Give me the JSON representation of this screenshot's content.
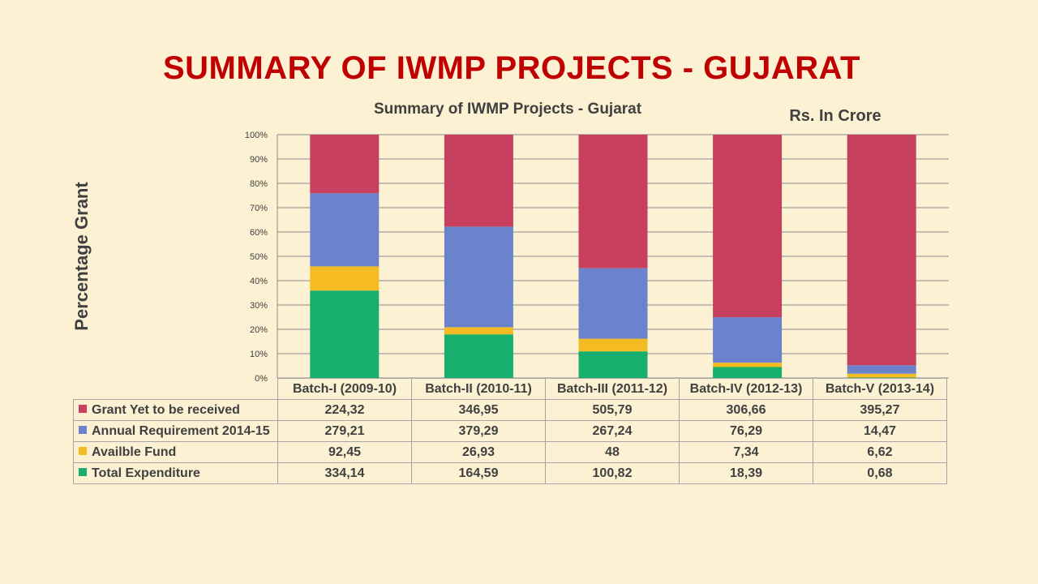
{
  "slide_title": "SUMMARY OF IWMP PROJECTS - GUJARAT",
  "unit_label": "Rs. In Crore",
  "chart_data": {
    "type": "bar",
    "stacked": "percent",
    "title": "Summary of IWMP Projects - Gujarat",
    "ylabel": "Percentage Grant",
    "xlabel": "",
    "ylim": [
      0,
      100
    ],
    "y_ticks": [
      "0%",
      "10%",
      "20%",
      "30%",
      "40%",
      "50%",
      "60%",
      "70%",
      "80%",
      "90%",
      "100%"
    ],
    "grid": true,
    "legend": "data-table",
    "categories": [
      "Batch-I (2009-10)",
      "Batch-II (2010-11)",
      "Batch-III (2011-12)",
      "Batch-IV (2012-13)",
      "Batch-V (2013-14)"
    ],
    "series": [
      {
        "name": "Grant Yet to be received",
        "color": "#c8405f",
        "values": [
          224.32,
          346.95,
          505.79,
          306.66,
          395.27
        ],
        "labels": [
          "224,32",
          "346,95",
          "505,79",
          "306,66",
          "395,27"
        ]
      },
      {
        "name": "Annual Requirement 2014-15",
        "color": "#6b83cc",
        "values": [
          279.21,
          379.29,
          267.24,
          76.29,
          14.47
        ],
        "labels": [
          "279,21",
          "379,29",
          "267,24",
          "76,29",
          "14,47"
        ]
      },
      {
        "name": "Availble Fund",
        "color": "#f4bb22",
        "values": [
          92.45,
          26.93,
          48,
          7.34,
          6.62
        ],
        "labels": [
          "92,45",
          "26,93",
          "48",
          "7,34",
          "6,62"
        ]
      },
      {
        "name": "Total Expenditure",
        "color": "#17ae6e",
        "values": [
          334.14,
          164.59,
          100.82,
          18.39,
          0.68
        ],
        "labels": [
          "334,14",
          "164,59",
          "100,82",
          "18,39",
          "0,68"
        ]
      }
    ]
  }
}
